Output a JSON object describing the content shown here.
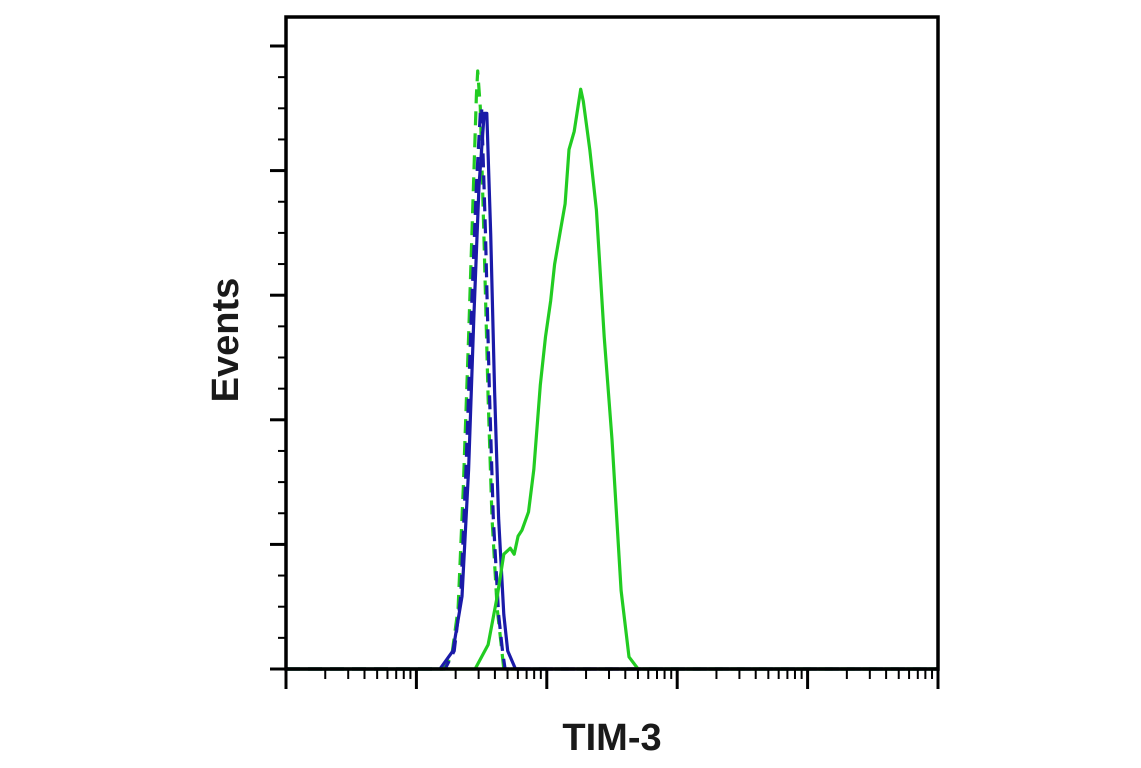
{
  "chart_data": {
    "type": "line",
    "xlabel": "TIM-3",
    "ylabel": "Events",
    "x_scale": "log",
    "x_decades": 5,
    "ylim": [
      0,
      1
    ],
    "grid": false,
    "legend": "none",
    "tick_labels_shown": false,
    "series": [
      {
        "color": "#22cc22",
        "dash": "dashed",
        "points": [
          [
            1.2,
            0
          ],
          [
            1.27,
            0.02
          ],
          [
            1.32,
            0.1
          ],
          [
            1.36,
            0.3
          ],
          [
            1.4,
            0.55
          ],
          [
            1.43,
            0.75
          ],
          [
            1.46,
            0.95
          ],
          [
            1.47,
            0.99
          ],
          [
            1.49,
            0.93
          ],
          [
            1.52,
            0.7
          ],
          [
            1.55,
            0.45
          ],
          [
            1.58,
            0.25
          ],
          [
            1.62,
            0.1
          ],
          [
            1.65,
            0.04
          ],
          [
            1.67,
            0
          ]
        ]
      },
      {
        "color": "#1a1aa8",
        "dash": "dashed",
        "points": [
          [
            1.22,
            0
          ],
          [
            1.29,
            0.03
          ],
          [
            1.34,
            0.12
          ],
          [
            1.38,
            0.33
          ],
          [
            1.42,
            0.58
          ],
          [
            1.46,
            0.8
          ],
          [
            1.49,
            0.92
          ],
          [
            1.5,
            0.93
          ],
          [
            1.53,
            0.72
          ],
          [
            1.56,
            0.46
          ],
          [
            1.59,
            0.25
          ],
          [
            1.63,
            0.09
          ],
          [
            1.66,
            0.03
          ],
          [
            1.68,
            0
          ]
        ]
      },
      {
        "color": "#1a1aa8",
        "dash": "solid",
        "points": [
          [
            1.18,
            0
          ],
          [
            1.28,
            0.03
          ],
          [
            1.35,
            0.12
          ],
          [
            1.4,
            0.33
          ],
          [
            1.44,
            0.58
          ],
          [
            1.48,
            0.8
          ],
          [
            1.52,
            0.92
          ],
          [
            1.54,
            0.92
          ],
          [
            1.57,
            0.72
          ],
          [
            1.6,
            0.46
          ],
          [
            1.63,
            0.25
          ],
          [
            1.67,
            0.09
          ],
          [
            1.7,
            0.03
          ],
          [
            1.76,
            0
          ]
        ]
      },
      {
        "color": "#22cc22",
        "dash": "solid",
        "points": [
          [
            1.45,
            0
          ],
          [
            1.55,
            0.04
          ],
          [
            1.62,
            0.12
          ],
          [
            1.67,
            0.19
          ],
          [
            1.72,
            0.2
          ],
          [
            1.75,
            0.19
          ],
          [
            1.78,
            0.22
          ],
          [
            1.81,
            0.23
          ],
          [
            1.86,
            0.26
          ],
          [
            1.9,
            0.33
          ],
          [
            1.95,
            0.47
          ],
          [
            1.99,
            0.55
          ],
          [
            2.03,
            0.61
          ],
          [
            2.06,
            0.67
          ],
          [
            2.1,
            0.72
          ],
          [
            2.14,
            0.77
          ],
          [
            2.17,
            0.86
          ],
          [
            2.21,
            0.89
          ],
          [
            2.26,
            0.96
          ],
          [
            2.28,
            0.94
          ],
          [
            2.33,
            0.86
          ],
          [
            2.38,
            0.76
          ],
          [
            2.44,
            0.55
          ],
          [
            2.5,
            0.38
          ],
          [
            2.57,
            0.13
          ],
          [
            2.63,
            0.02
          ],
          [
            2.7,
            0
          ]
        ]
      }
    ]
  }
}
